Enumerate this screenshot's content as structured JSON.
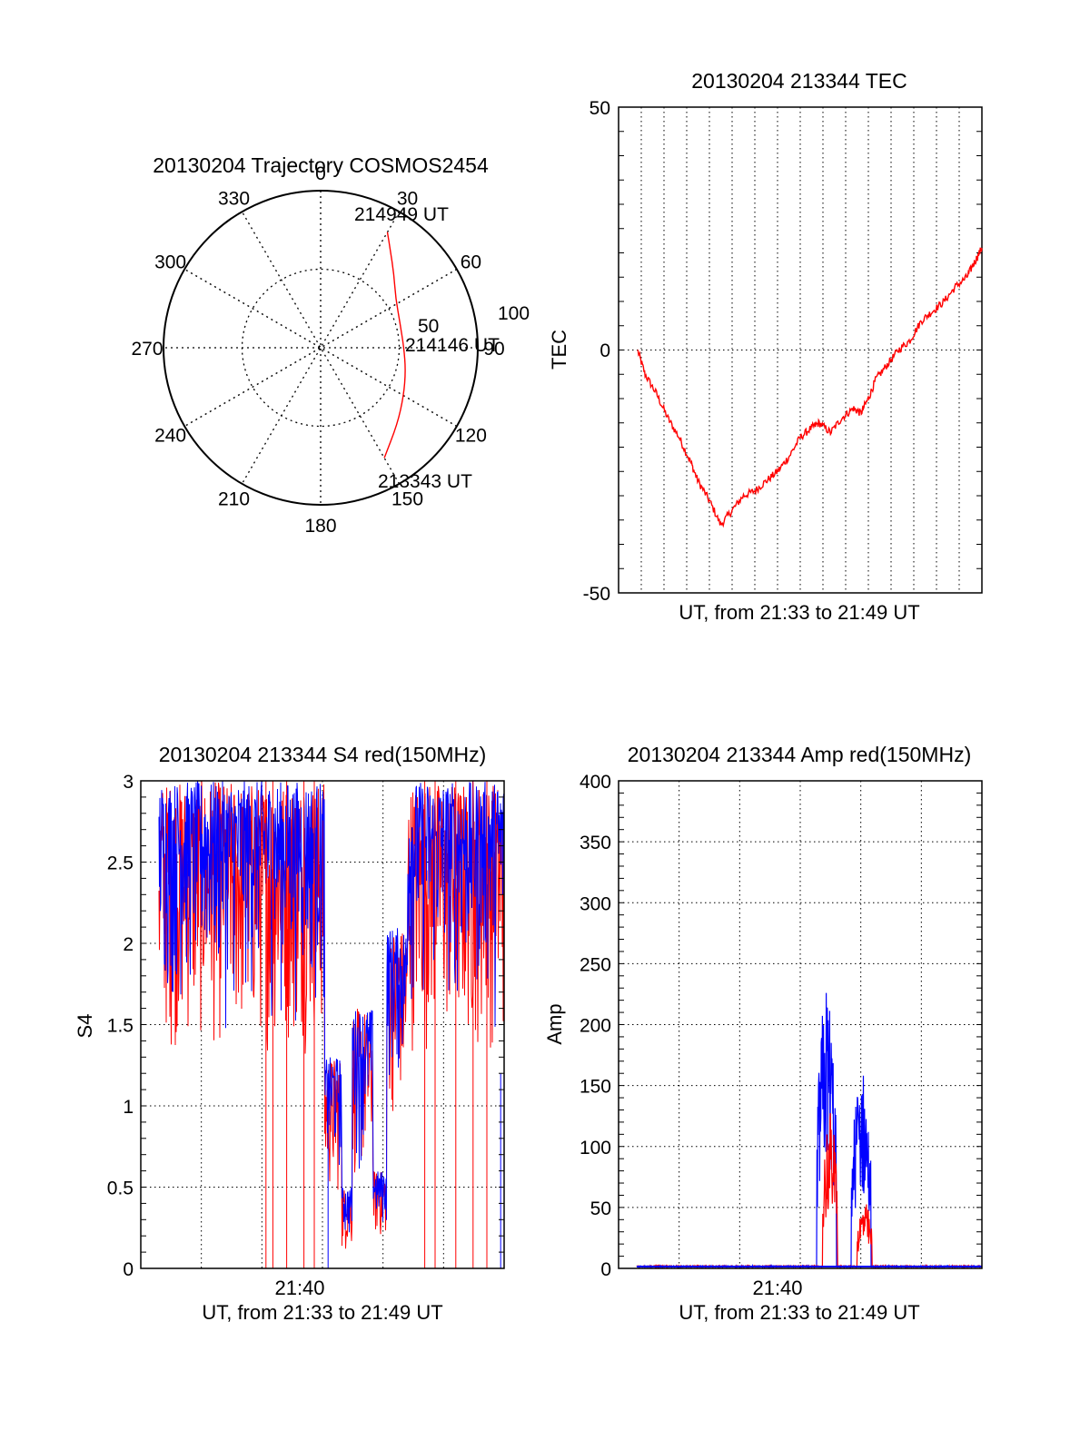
{
  "colors": {
    "red": "#ff0000",
    "blue": "#0000ff",
    "axis": "#000000",
    "grid": "#000000"
  },
  "chart_data": [
    {
      "id": "polar",
      "type": "polar-trajectory",
      "title": "20130204 Trajectory COSMOS2454",
      "azimuth_labels": [
        "0",
        "30",
        "60",
        "90",
        "120",
        "150",
        "180",
        "210",
        "240",
        "270",
        "300",
        "330"
      ],
      "radial_labels": [
        "50",
        "100"
      ],
      "radial_max": 100,
      "track": {
        "color": "red",
        "points": [
          {
            "az": 150,
            "r": 81
          },
          {
            "az": 135,
            "r": 69
          },
          {
            "az": 120,
            "r": 61
          },
          {
            "az": 105,
            "r": 56
          },
          {
            "az": 90,
            "r": 53
          },
          {
            "az": 72,
            "r": 53
          },
          {
            "az": 57,
            "r": 57
          },
          {
            "az": 45,
            "r": 66
          },
          {
            "az": 35,
            "r": 77
          },
          {
            "az": 30,
            "r": 85
          }
        ]
      },
      "annotations": [
        {
          "text": "213343 UT",
          "az": 150,
          "r": 81
        },
        {
          "text": "214146 UT",
          "az": 90,
          "r": 53
        },
        {
          "text": "214949 UT",
          "az": 30,
          "r": 85
        }
      ]
    },
    {
      "id": "tec",
      "type": "line",
      "title": "20130204 213344 TEC",
      "xlabel": "UT, from 21:33 to 21:49 UT",
      "ylabel": "TEC",
      "xlim": [
        "21:33",
        "21:49"
      ],
      "ylim": [
        -50,
        50
      ],
      "yticks": [
        "50",
        "0",
        "-50"
      ],
      "grid": "dotted",
      "series": [
        {
          "color": "red",
          "x": [
            "21:33:50",
            "21:34:10",
            "21:34:40",
            "21:35:10",
            "21:35:40",
            "21:36:10",
            "21:36:30",
            "21:37:00",
            "21:37:30",
            "21:38:00",
            "21:38:30",
            "21:39:00",
            "21:39:30",
            "21:40:00",
            "21:40:30",
            "21:41:00",
            "21:41:30",
            "21:41:50",
            "21:42:20",
            "21:42:50",
            "21:43:20",
            "21:43:40",
            "21:44:00",
            "21:44:20",
            "21:44:50",
            "21:45:20",
            "21:45:50",
            "21:46:20",
            "21:46:50",
            "21:47:20",
            "21:47:50",
            "21:48:20",
            "21:48:40",
            "21:49:00"
          ],
          "y": [
            0,
            -5,
            -9,
            -14,
            -18,
            -23,
            -27,
            -31,
            -36,
            -33,
            -30,
            -29,
            -27,
            -25,
            -22,
            -18,
            -16,
            -15,
            -17,
            -14,
            -12,
            -13,
            -10,
            -6,
            -3,
            0,
            2,
            6,
            8,
            10,
            13,
            15,
            18,
            21
          ]
        }
      ]
    },
    {
      "id": "s4",
      "type": "line",
      "title": "20130204 213344 S4 red(150MHz)",
      "xlabel": "UT, from 21:33 to 21:49 UT",
      "ylabel": "S4",
      "xtick_label": "21:40",
      "ylim": [
        0,
        3
      ],
      "yticks": [
        "0",
        "0.5",
        "1",
        "1.5",
        "2",
        "2.5",
        "3"
      ],
      "grid": "dotted",
      "series": [
        {
          "name": "",
          "color": "red",
          "note": "noisy, saturated near 3 with dips to 0"
        },
        {
          "name": "",
          "color": "blue",
          "note": "noisy, mostly 1.3-3"
        }
      ],
      "segments": [
        {
          "x0": 0.0,
          "x1": 0.48,
          "low": 1.3,
          "high": 3.0
        },
        {
          "x0": 0.48,
          "x1": 0.53,
          "low": 0.4,
          "high": 1.3
        },
        {
          "x0": 0.53,
          "x1": 0.56,
          "low": 0.08,
          "high": 0.5
        },
        {
          "x0": 0.56,
          "x1": 0.62,
          "low": 0.5,
          "high": 1.6
        },
        {
          "x0": 0.62,
          "x1": 0.66,
          "low": 0.15,
          "high": 0.6
        },
        {
          "x0": 0.66,
          "x1": 0.72,
          "low": 0.9,
          "high": 2.1
        },
        {
          "x0": 0.72,
          "x1": 1.0,
          "low": 1.3,
          "high": 3.0
        }
      ]
    },
    {
      "id": "amp",
      "type": "line",
      "title": "20130204 213344 Amp red(150MHz)",
      "xlabel": "UT, from 21:33 to 21:49 UT",
      "ylabel": "Amp",
      "xtick_label": "21:40",
      "ylim": [
        0,
        400
      ],
      "yticks": [
        "0",
        "50",
        "100",
        "150",
        "200",
        "250",
        "300",
        "350",
        "400"
      ],
      "grid": "dotted",
      "series": [
        {
          "name": "",
          "color": "blue",
          "peaks": [
            {
              "x": 0.55,
              "y": 235
            },
            {
              "x": 0.65,
              "y": 168
            }
          ]
        },
        {
          "name": "",
          "color": "red",
          "peaks": [
            {
              "x": 0.56,
              "y": 130
            },
            {
              "x": 0.66,
              "y": 55
            }
          ]
        }
      ]
    }
  ]
}
